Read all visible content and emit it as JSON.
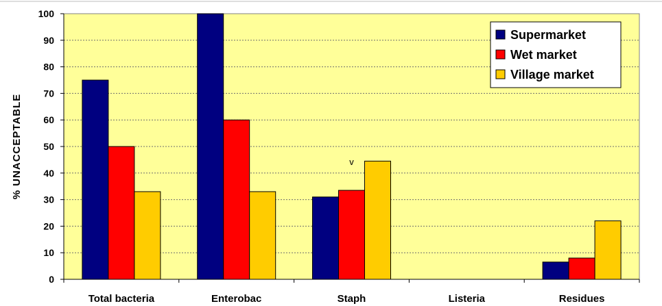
{
  "chart_data": {
    "type": "bar",
    "ylabel": "% UNACCEPTABLE",
    "xlabel": "",
    "ylim": [
      0,
      100
    ],
    "yticks": [
      0,
      10,
      20,
      30,
      40,
      50,
      60,
      70,
      80,
      90,
      100
    ],
    "grid": true,
    "legend_position": "top-right",
    "categories": [
      "Total bacteria",
      "Enterobac",
      "Staph",
      "Listeria",
      "Residues"
    ],
    "series": [
      {
        "name": "Supermarket",
        "color": "#000080",
        "values": [
          75,
          100,
          31,
          0,
          6.5
        ]
      },
      {
        "name": "Wet market",
        "color": "#ff0000",
        "values": [
          50,
          60,
          33.5,
          0,
          8
        ]
      },
      {
        "name": "Village market",
        "color": "#ffcc00",
        "values": [
          33,
          33,
          44.5,
          0,
          22
        ]
      }
    ],
    "annotations": [
      {
        "text": "v",
        "category": "Staph",
        "y": 43
      }
    ],
    "plot_background": "#ffff99"
  }
}
